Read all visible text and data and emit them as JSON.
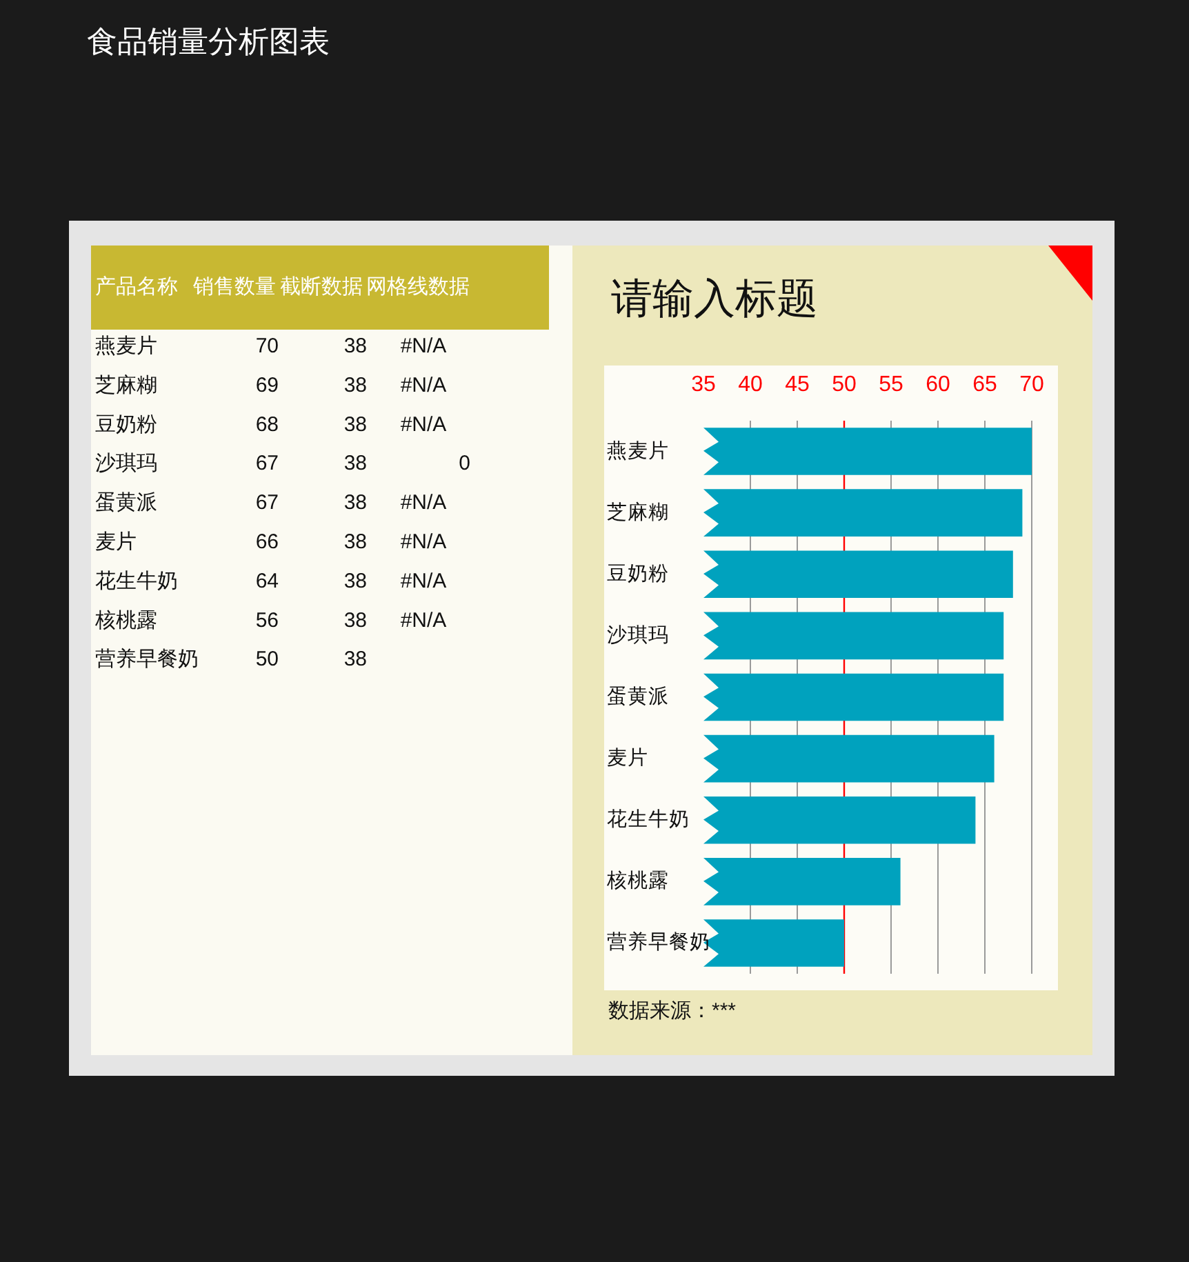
{
  "chart_data": [
    {
      "type": "other",
      "title": "食品销量分析图表",
      "ylabel": "产品名称",
      "categories": [
        "燕麦片",
        "芝麻糊",
        "豆奶粉",
        "沙琪玛",
        "蛋黄派",
        "麦片",
        "花生牛奶",
        "核桃露",
        "营养早餐奶"
      ],
      "series": [
        {
          "name": "销售数量",
          "values": [
            70,
            69,
            68,
            67,
            67,
            66,
            64,
            56,
            50
          ]
        },
        {
          "name": "截断数据",
          "values": [
            38,
            38,
            38,
            38,
            38,
            38,
            38,
            38,
            38
          ]
        },
        {
          "name": "网格线数据",
          "values": [
            null,
            null,
            null,
            0,
            null,
            null,
            null,
            null,
            null
          ],
          "value_labels": [
            "#N/A",
            "#N/A",
            "#N/A",
            "0",
            "#N/A",
            "#N/A",
            "#N/A",
            "#N/A",
            null
          ]
        }
      ],
      "data_labels": true
    },
    {
      "type": "bar",
      "orientation": "horizontal",
      "title": "请输入标题",
      "categories": [
        "燕麦片",
        "芝麻糊",
        "豆奶粉",
        "沙琪玛",
        "蛋黄派",
        "麦片",
        "花生牛奶",
        "核桃露",
        "营养早餐奶"
      ],
      "values": [
        70,
        69,
        68,
        67,
        67,
        66,
        64,
        56,
        50
      ],
      "color": "#00a2be",
      "xlim": [
        35,
        70
      ],
      "xticks": [
        35,
        40,
        45,
        50,
        55,
        60,
        65,
        70
      ],
      "grid": "x",
      "ref_lines": [
        {
          "axis": "x",
          "value": 50,
          "color": "#ff0000"
        }
      ],
      "annotations": [
        "数据来源：***"
      ]
    }
  ]
}
